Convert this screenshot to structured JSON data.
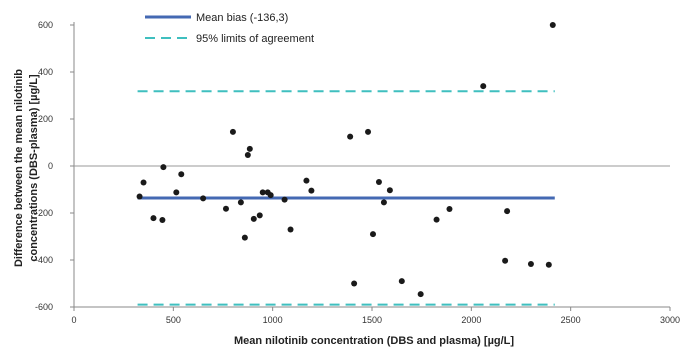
{
  "chart_data": {
    "type": "scatter",
    "xlabel": "Mean nilotinib concentration (DBS and plasma) [µg/L]",
    "ylabel_lines": [
      "Difference between the mean nilotinib",
      "concentrations (DBS-plasma) [µg/L]"
    ],
    "xlim": [
      0,
      3000
    ],
    "ylim": [
      -600,
      600
    ],
    "x_ticks": [
      "0",
      "500",
      "1000",
      "1500",
      "2000",
      "2500",
      "3000"
    ],
    "y_ticks": [
      "600",
      "400",
      "200",
      "0",
      "-200",
      "-400",
      "-600"
    ],
    "grid": false,
    "zero_line": true,
    "legend_position": "top-left",
    "colors": {
      "points": "#1a1a1a",
      "bias": "#4469b3",
      "limits": "#3fbfbf",
      "zero": "#999999",
      "axis": "#888888"
    },
    "legend": [
      {
        "label": "Mean bias (-136,3)",
        "style": "solid"
      },
      {
        "label": "95% limits of agreement",
        "style": "dashed"
      }
    ],
    "reference_lines": {
      "bias": {
        "y": -136.3,
        "x_range": [
          320,
          2420
        ]
      },
      "upper_loa": {
        "y": 318,
        "x_range": [
          320,
          2420
        ]
      },
      "lower_loa": {
        "y": -590,
        "x_range": [
          320,
          2420
        ]
      }
    },
    "points": [
      {
        "x": 330,
        "y": -130
      },
      {
        "x": 350,
        "y": -70
      },
      {
        "x": 400,
        "y": -222
      },
      {
        "x": 445,
        "y": -230
      },
      {
        "x": 450,
        "y": -5
      },
      {
        "x": 515,
        "y": -112
      },
      {
        "x": 540,
        "y": -35
      },
      {
        "x": 650,
        "y": -138
      },
      {
        "x": 765,
        "y": -182
      },
      {
        "x": 800,
        "y": 145
      },
      {
        "x": 840,
        "y": -155
      },
      {
        "x": 860,
        "y": -305
      },
      {
        "x": 875,
        "y": 47
      },
      {
        "x": 885,
        "y": 73
      },
      {
        "x": 905,
        "y": -225
      },
      {
        "x": 935,
        "y": -210
      },
      {
        "x": 950,
        "y": -112
      },
      {
        "x": 975,
        "y": -112
      },
      {
        "x": 990,
        "y": -124
      },
      {
        "x": 1060,
        "y": -143
      },
      {
        "x": 1090,
        "y": -270
      },
      {
        "x": 1170,
        "y": -62
      },
      {
        "x": 1195,
        "y": -105
      },
      {
        "x": 1390,
        "y": 125
      },
      {
        "x": 1410,
        "y": -500
      },
      {
        "x": 1480,
        "y": 145
      },
      {
        "x": 1505,
        "y": -290
      },
      {
        "x": 1535,
        "y": -68
      },
      {
        "x": 1560,
        "y": -155
      },
      {
        "x": 1590,
        "y": -103
      },
      {
        "x": 1650,
        "y": -490
      },
      {
        "x": 1745,
        "y": -545
      },
      {
        "x": 1825,
        "y": -228
      },
      {
        "x": 1890,
        "y": -183
      },
      {
        "x": 2060,
        "y": 340
      },
      {
        "x": 2170,
        "y": -403
      },
      {
        "x": 2180,
        "y": -192
      },
      {
        "x": 2300,
        "y": -417
      },
      {
        "x": 2390,
        "y": -420
      },
      {
        "x": 2410,
        "y": 600
      }
    ]
  }
}
